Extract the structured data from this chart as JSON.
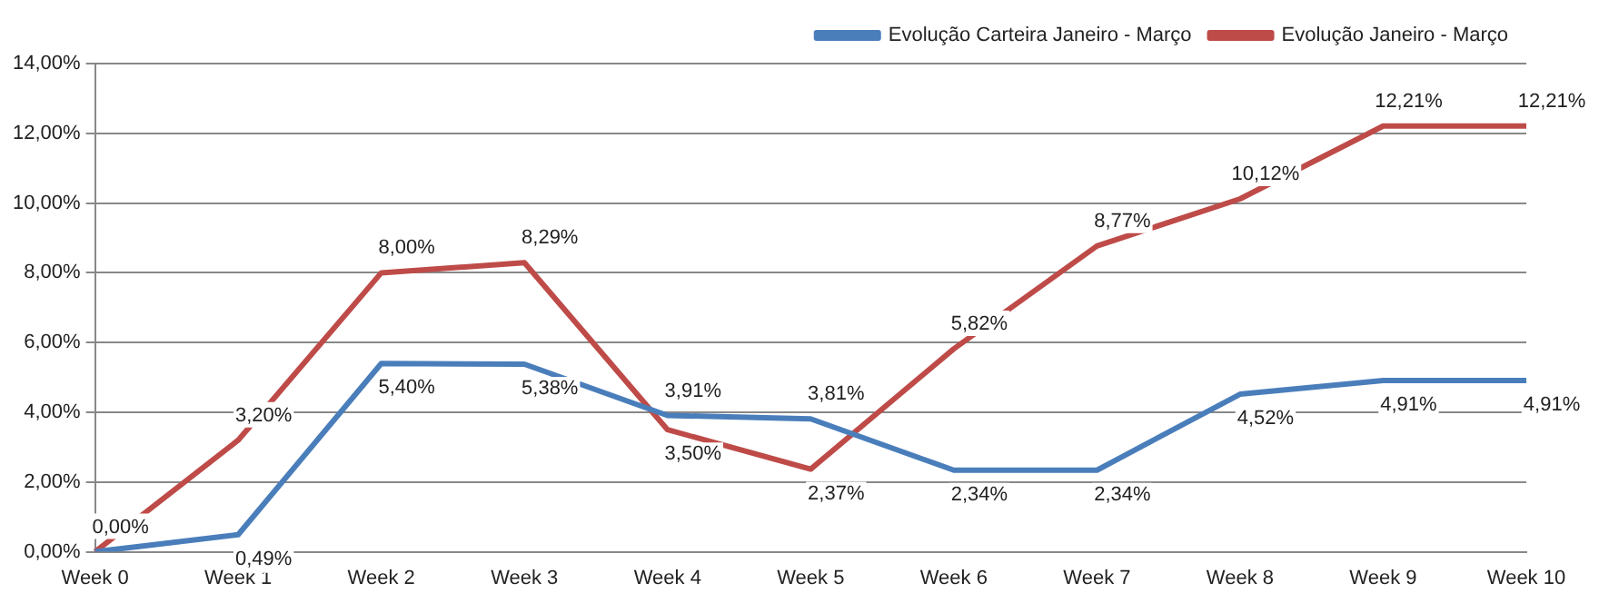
{
  "chart_data": {
    "type": "line",
    "categories": [
      "Week 0",
      "Week 1",
      "Week 2",
      "Week 3",
      "Week 4",
      "Week 5",
      "Week 6",
      "Week 7",
      "Week 8",
      "Week 9",
      "Week 10"
    ],
    "series": [
      {
        "name": "Evolução Carteira Janeiro - Março",
        "color": "#4a7ebb",
        "values": [
          0,
          0.49,
          5.4,
          5.38,
          3.91,
          3.81,
          2.34,
          2.34,
          4.52,
          4.91,
          4.91
        ],
        "value_labels": [
          "0,00%",
          "0,49%",
          "5,40%",
          "5,38%",
          "3,91%",
          "3,81%",
          "2,34%",
          "2,34%",
          "4,52%",
          "4,91%",
          "4,91%"
        ]
      },
      {
        "name": "Evolução Janeiro - Março",
        "color": "#be4b48",
        "values": [
          0,
          3.2,
          8,
          8.29,
          3.5,
          2.37,
          5.82,
          8.77,
          10.12,
          12.21,
          12.21
        ],
        "value_labels": [
          null,
          "3,20%",
          "8,00%",
          "8,29%",
          "3,50%",
          "2,37%",
          "5,82%",
          "8,77%",
          "10,12%",
          "12,21%",
          "12,21%"
        ]
      }
    ],
    "ylim": [
      0,
      14
    ],
    "yticks": [
      {
        "value": 0,
        "label": "0,00%"
      },
      {
        "value": 2,
        "label": "2,00%"
      },
      {
        "value": 4,
        "label": "4,00%"
      },
      {
        "value": 6,
        "label": "6,00%"
      },
      {
        "value": 8,
        "label": "8,00%"
      },
      {
        "value": 10,
        "label": "10,00%"
      },
      {
        "value": 12,
        "label": "12,00%"
      },
      {
        "value": 14,
        "label": "14,00%"
      }
    ],
    "grid": "y",
    "legend": "top",
    "marker": "none",
    "line_style": "solid"
  }
}
